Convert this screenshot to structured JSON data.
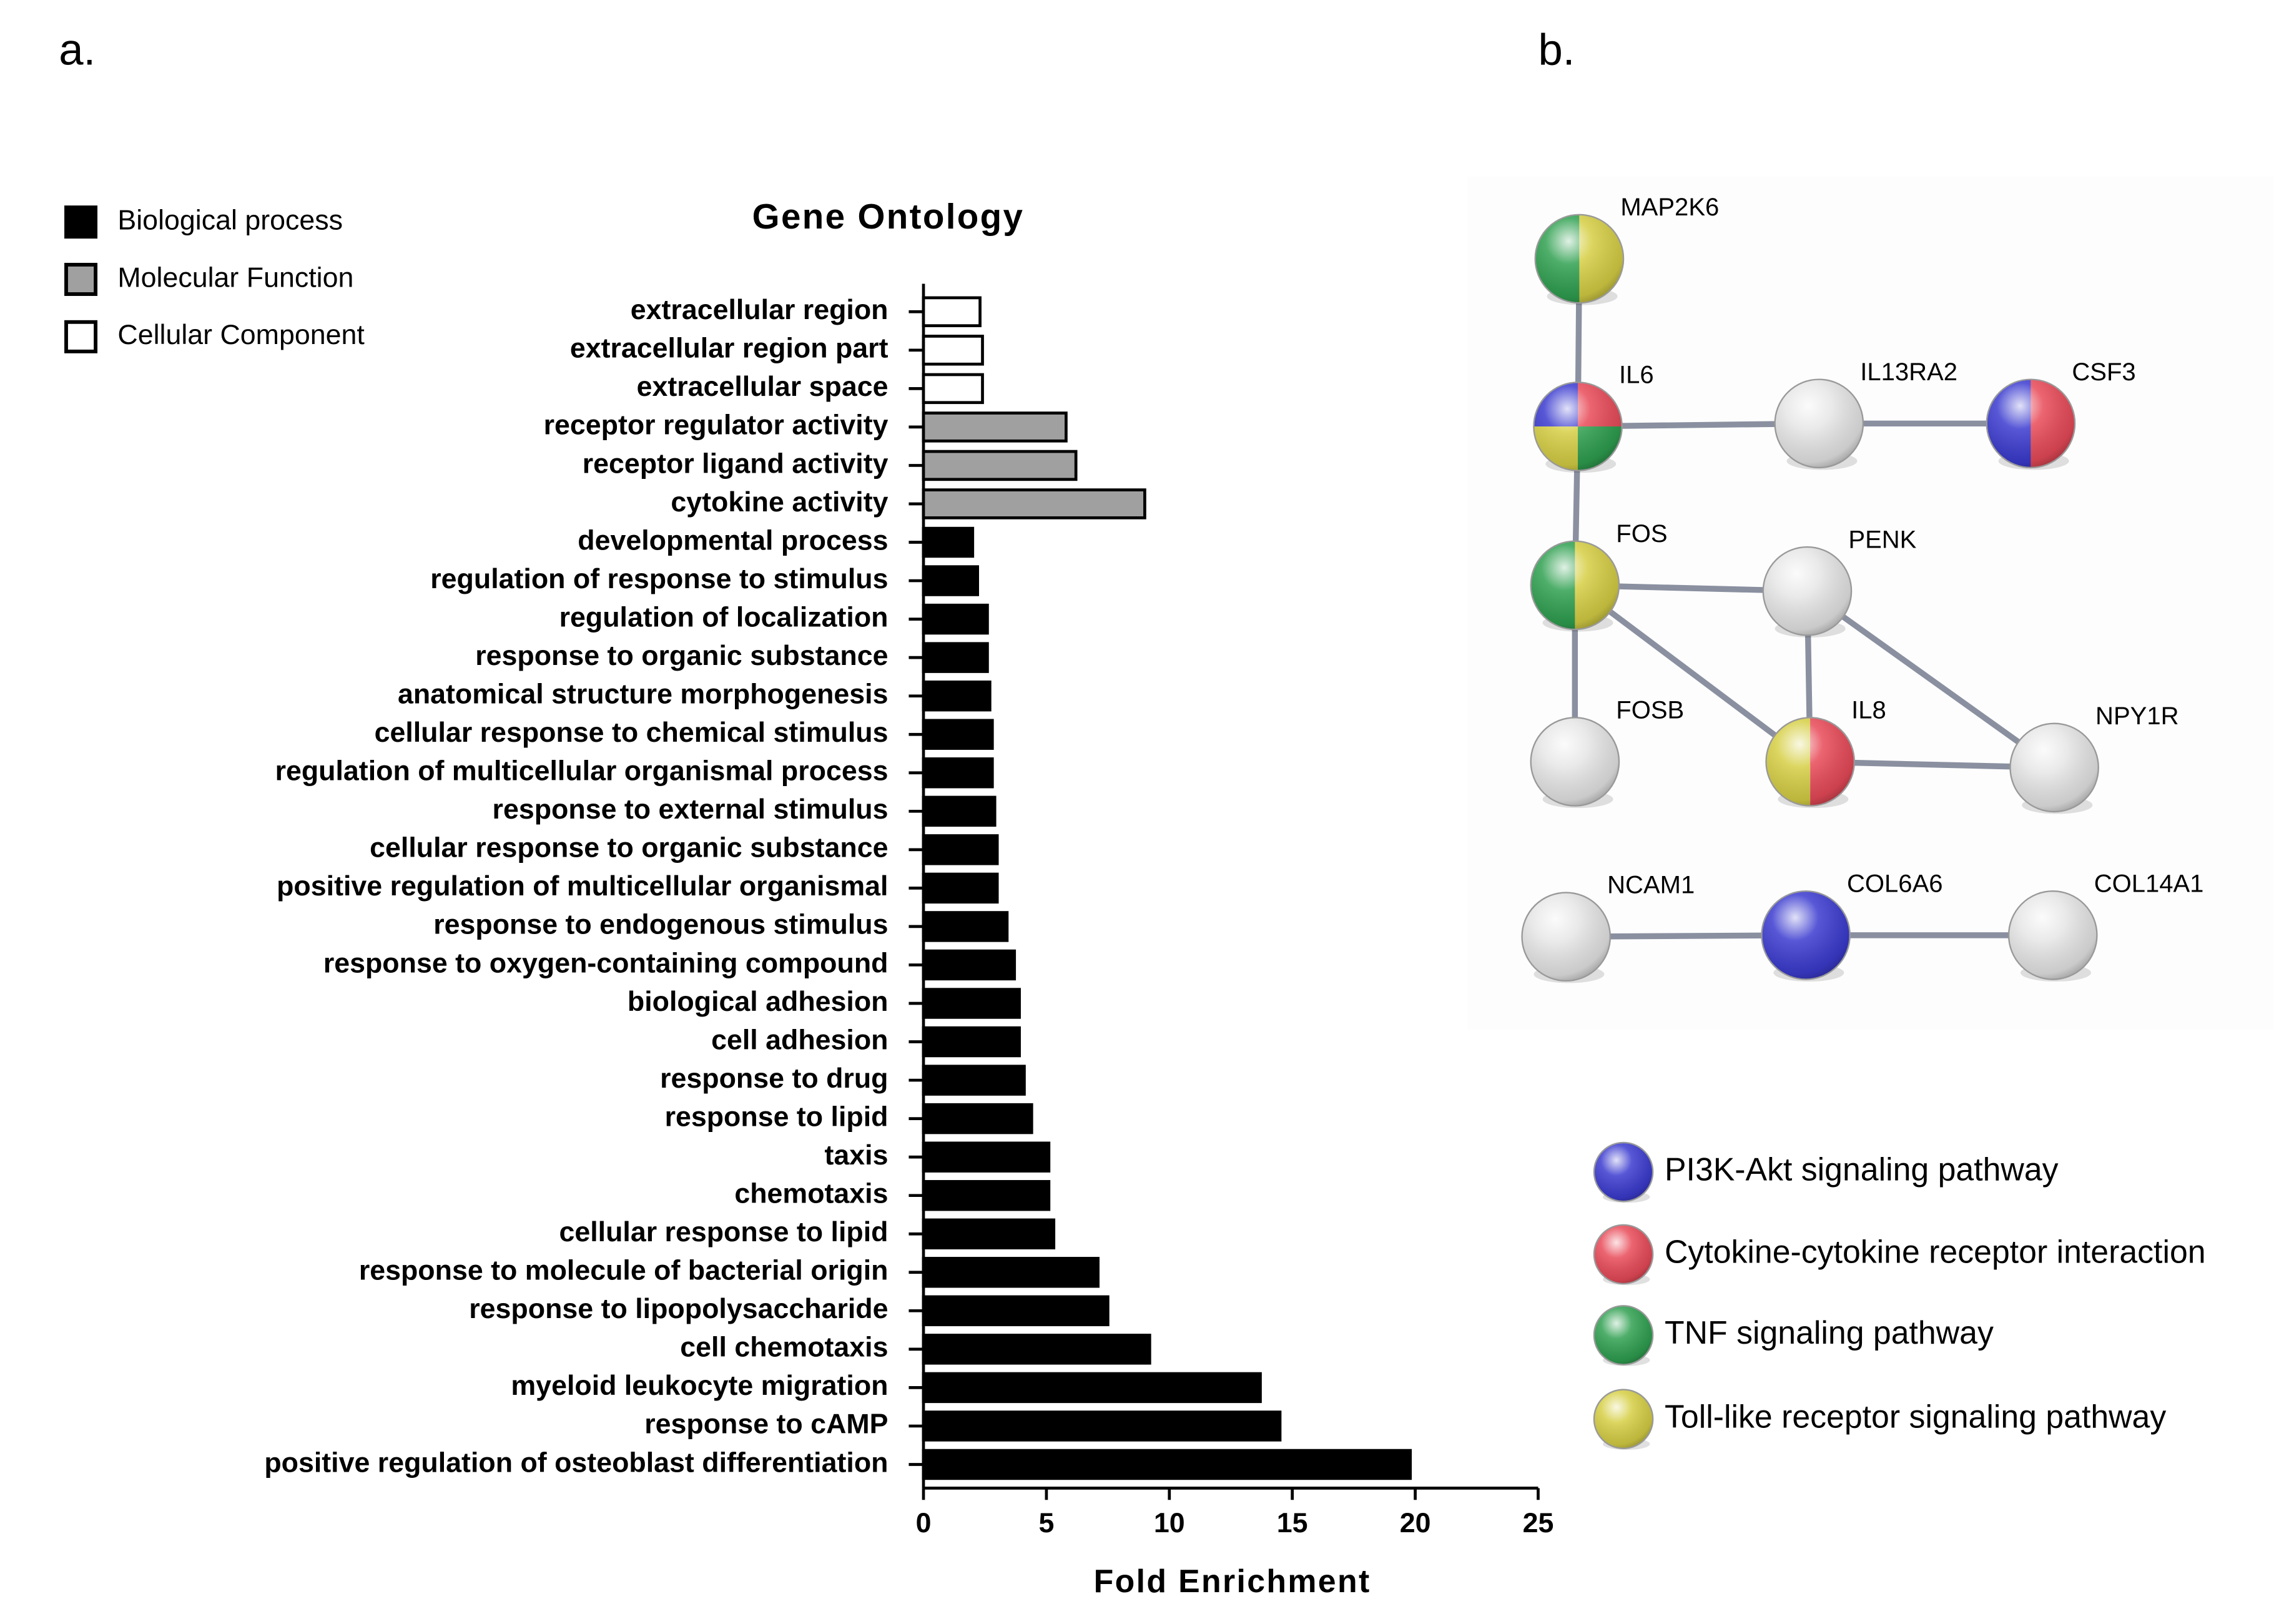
{
  "panel_labels": [
    "a.",
    "b."
  ],
  "chart_data": {
    "type": "barh",
    "title": "Gene Ontology",
    "x_label": "Fold Enrichment",
    "categories": [
      "extracellular region",
      "extracellular region part",
      "extracellular space",
      "receptor regulator activity",
      "receptor ligand activity",
      "cytokine activity",
      "developmental process",
      "regulation of response to stimulus",
      "regulation of localization",
      "response to organic substance",
      "anatomical structure morphogenesis",
      "cellular response to chemical stimulus",
      "regulation of multicellular organismal process",
      "response to external stimulus",
      "cellular response to organic substance",
      "positive regulation of multicellular organismal",
      "response to endogenous stimulus",
      "response to oxygen-containing compound",
      "biological adhesion",
      "cell adhesion",
      "response to drug",
      "response to lipid",
      "taxis",
      "chemotaxis",
      "cellular response to lipid",
      "response to molecule of bacterial origin",
      "response to lipopolysaccharide",
      "cell chemotaxis",
      "myeloid leukocyte migration",
      "response to cAMP",
      "positive regulation of osteoblast differentiation"
    ],
    "series": [
      {
        "name": "Biological process",
        "color": "#000000",
        "values": [
          null,
          null,
          null,
          null,
          null,
          null,
          2.0,
          2.2,
          2.6,
          2.6,
          2.7,
          2.8,
          2.8,
          2.9,
          3.0,
          3.0,
          3.4,
          3.7,
          3.9,
          3.9,
          4.1,
          4.4,
          5.1,
          5.1,
          5.3,
          7.1,
          7.5,
          9.2,
          13.7,
          14.5,
          19.8
        ]
      },
      {
        "name": "Molecular Function",
        "color": "#a0a0a0",
        "values": [
          null,
          null,
          null,
          5.8,
          6.2,
          9.0,
          null,
          null,
          null,
          null,
          null,
          null,
          null,
          null,
          null,
          null,
          null,
          null,
          null,
          null,
          null,
          null,
          null,
          null,
          null,
          null,
          null,
          null,
          null,
          null,
          null
        ]
      },
      {
        "name": "Cellular Component",
        "color": "#ffffff",
        "values": [
          2.3,
          2.4,
          2.4,
          null,
          null,
          null,
          null,
          null,
          null,
          null,
          null,
          null,
          null,
          null,
          null,
          null,
          null,
          null,
          null,
          null,
          null,
          null,
          null,
          null,
          null,
          null,
          null,
          null,
          null,
          null,
          null
        ]
      }
    ],
    "xlim": [
      0,
      25
    ],
    "xticks": [
      0,
      5,
      10,
      15,
      20,
      25
    ]
  },
  "network": {
    "nodes": [
      {
        "label": "MAP2K6"
      },
      {
        "label": "IL6"
      },
      {
        "label": "IL13RA2"
      },
      {
        "label": "CSF3"
      },
      {
        "label": "FOS"
      },
      {
        "label": "PENK"
      },
      {
        "label": "FOSB"
      },
      {
        "label": "IL8"
      },
      {
        "label": "NPY1R"
      },
      {
        "label": "NCAM1"
      },
      {
        "label": "COL6A6"
      },
      {
        "label": "COL14A1"
      }
    ],
    "legend": [
      {
        "name": "PI3K-Akt signaling pathway",
        "color": "#3b3bd0"
      },
      {
        "name": "Cytokine-cytokine receptor interaction",
        "color": "#e84a58"
      },
      {
        "name": "TNF signaling pathway",
        "color": "#2fa050"
      },
      {
        "name": "Toll-like receptor signaling pathway",
        "color": "#d6cf45"
      }
    ]
  }
}
